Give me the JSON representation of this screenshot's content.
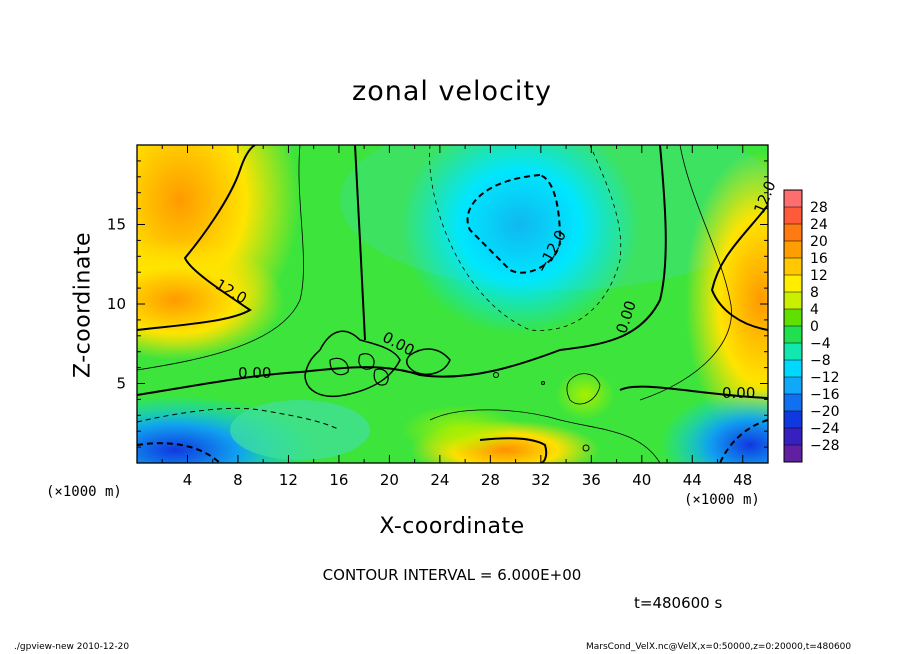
{
  "chart_data": {
    "type": "heatmap",
    "title": "zonal velocity",
    "xlabel": "X-coordinate",
    "ylabel": "Z-coordinate",
    "x_unit": "(×1000 m)",
    "y_unit": "(×1000 m)",
    "x_ticks": [
      4,
      8,
      12,
      16,
      20,
      24,
      28,
      32,
      36,
      40,
      44,
      48
    ],
    "y_ticks": [
      5,
      10,
      15
    ],
    "xlim": [
      0,
      50
    ],
    "ylim": [
      0,
      20
    ],
    "colorbar_levels": [
      28,
      24,
      20,
      16,
      12,
      8,
      4,
      0,
      -4,
      -8,
      -12,
      -16,
      -20,
      -24,
      -28
    ],
    "contour_labels": [
      "12.0",
      "0.00",
      "0.00",
      "0.00",
      "0.00",
      "−12.0",
      "12.0",
      "0.00"
    ],
    "contour_interval": "CONTOUR INTERVAL = 6.000E+00",
    "time": "t=480600 s",
    "features": [
      {
        "x": 3,
        "z": 16,
        "v": 16
      },
      {
        "x": 2,
        "z": 11,
        "v": 16
      },
      {
        "x": 30,
        "z": 15,
        "v": -12
      },
      {
        "x": 49,
        "z": 10,
        "v": 16
      },
      {
        "x": 2,
        "z": 1,
        "v": -18
      },
      {
        "x": 47,
        "z": 1,
        "v": -16
      },
      {
        "x": 30,
        "z": 1,
        "v": 16
      }
    ]
  },
  "footer": {
    "left": "./gpview-new  2010-12-20",
    "right": "MarsCond_VelX.nc@VelX,x=0:50000,z=0:20000,t=480600"
  },
  "colors": {
    "neg_max": "#5a1fa0",
    "neg_strong": "#1040e0",
    "neg": "#00d8ff",
    "zero": "#30e030",
    "pos": "#ffe400",
    "pos_strong": "#ff8000",
    "pos_max": "#ff5050"
  }
}
